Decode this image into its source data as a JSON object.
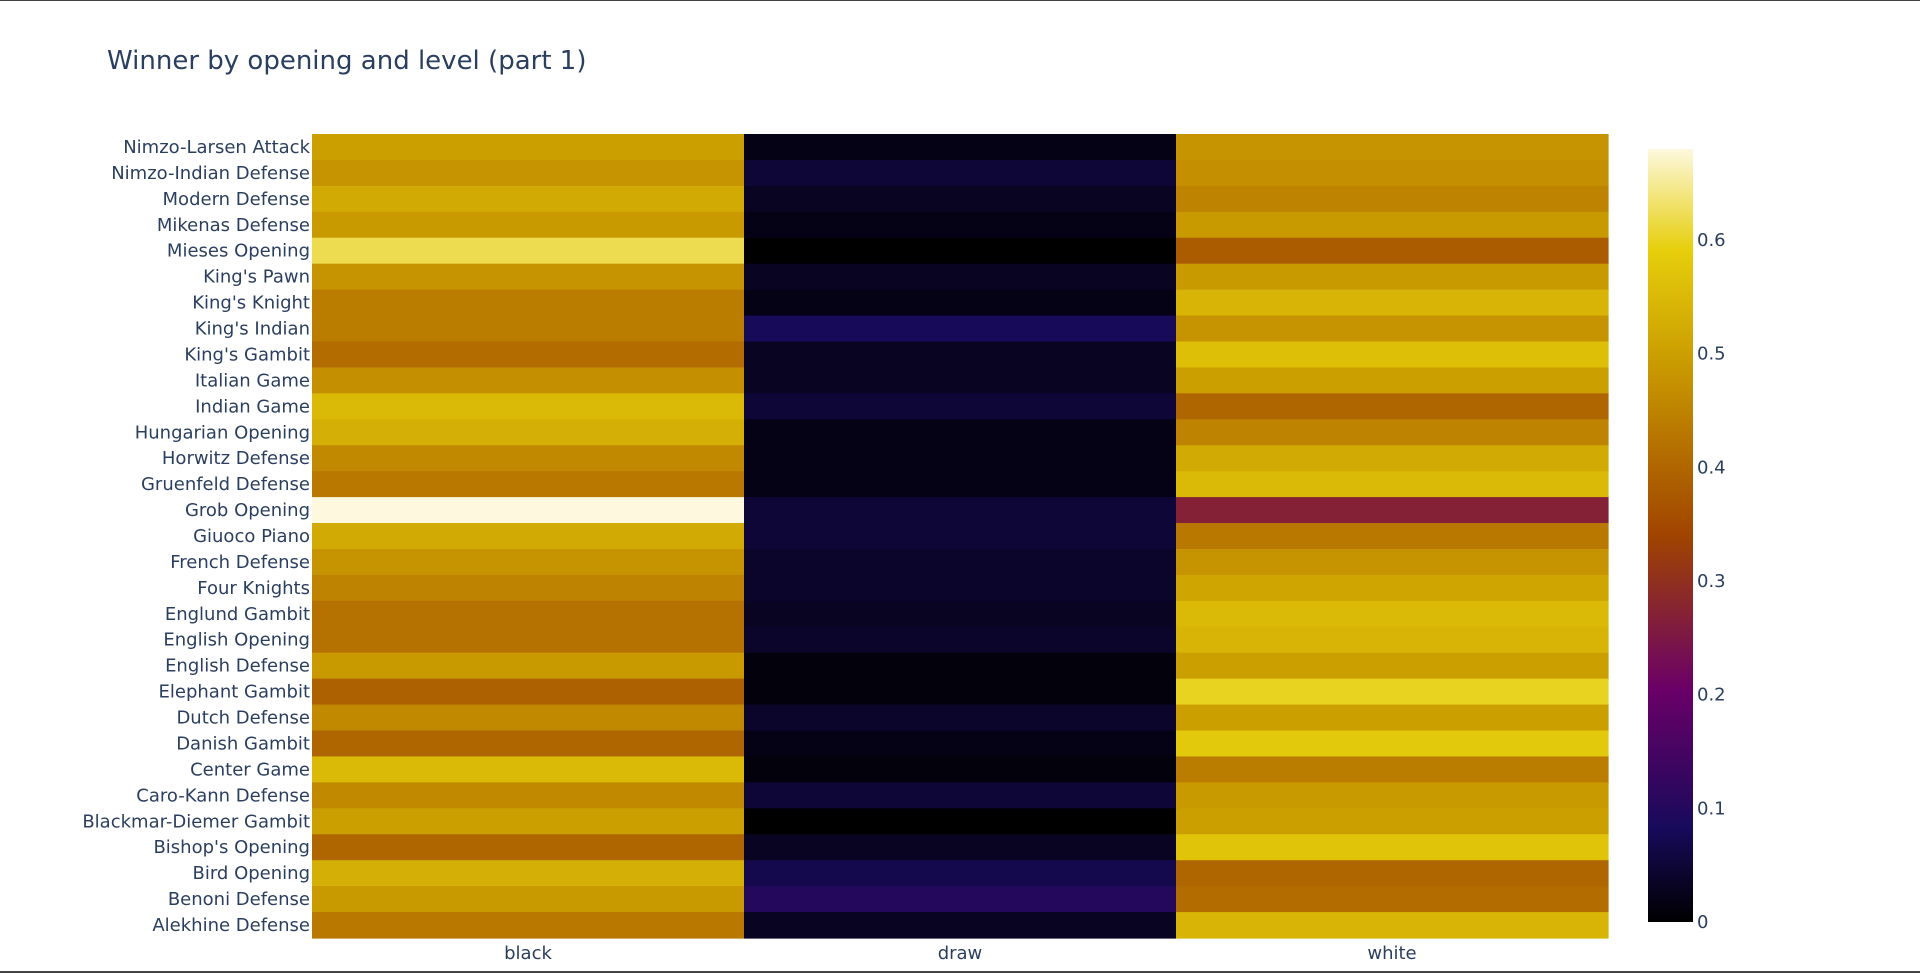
{
  "chart_data": {
    "type": "heatmap",
    "title": "Winner by opening and level (part 1)",
    "x": [
      "black",
      "draw",
      "white"
    ],
    "y": [
      "Nimzo-Larsen Attack",
      "Nimzo-Indian Defense",
      "Modern Defense",
      "Mikenas Defense",
      "Mieses Opening",
      "King's Pawn",
      "King's Knight",
      "King's Indian",
      "King's Gambit",
      "Italian Game",
      "Indian Game",
      "Hungarian Opening",
      "Horwitz Defense",
      "Gruenfeld Defense",
      "Grob Opening",
      "Giuoco Piano",
      "French Defense",
      "Four Knights",
      "Englund Gambit",
      "English Opening",
      "English Defense",
      "Elephant Gambit",
      "Dutch Defense",
      "Danish Gambit",
      "Center Game",
      "Caro-Kann Defense",
      "Blackmar-Diemer Gambit",
      "Bishop's Opening",
      "Bird Opening",
      "Benoni Defense",
      "Alekhine Defense"
    ],
    "z": [
      [
        0.5,
        0.02,
        0.48
      ],
      [
        0.48,
        0.05,
        0.47
      ],
      [
        0.52,
        0.03,
        0.45
      ],
      [
        0.49,
        0.02,
        0.49
      ],
      [
        0.62,
        0.0,
        0.38
      ],
      [
        0.48,
        0.03,
        0.49
      ],
      [
        0.44,
        0.02,
        0.54
      ],
      [
        0.44,
        0.08,
        0.48
      ],
      [
        0.41,
        0.03,
        0.56
      ],
      [
        0.47,
        0.03,
        0.5
      ],
      [
        0.55,
        0.05,
        0.4
      ],
      [
        0.53,
        0.02,
        0.45
      ],
      [
        0.46,
        0.02,
        0.52
      ],
      [
        0.43,
        0.02,
        0.55
      ],
      [
        0.68,
        0.05,
        0.27
      ],
      [
        0.52,
        0.05,
        0.43
      ],
      [
        0.48,
        0.04,
        0.48
      ],
      [
        0.45,
        0.04,
        0.51
      ],
      [
        0.42,
        0.03,
        0.55
      ],
      [
        0.42,
        0.04,
        0.54
      ],
      [
        0.49,
        0.01,
        0.5
      ],
      [
        0.39,
        0.01,
        0.6
      ],
      [
        0.46,
        0.04,
        0.5
      ],
      [
        0.4,
        0.02,
        0.58
      ],
      [
        0.55,
        0.01,
        0.44
      ],
      [
        0.46,
        0.05,
        0.49
      ],
      [
        0.5,
        0.0,
        0.5
      ],
      [
        0.4,
        0.03,
        0.57
      ],
      [
        0.53,
        0.07,
        0.4
      ],
      [
        0.49,
        0.1,
        0.41
      ],
      [
        0.43,
        0.03,
        0.54
      ]
    ],
    "zmin": 0,
    "zmax": 0.68,
    "colorscale": "gnuplot",
    "colorbar_ticks": [
      0,
      0.1,
      0.2,
      0.3,
      0.4,
      0.5,
      0.6
    ],
    "colorbar_tick_labels": [
      "0",
      "0.1",
      "0.2",
      "0.3",
      "0.4",
      "0.5",
      "0.6"
    ]
  }
}
